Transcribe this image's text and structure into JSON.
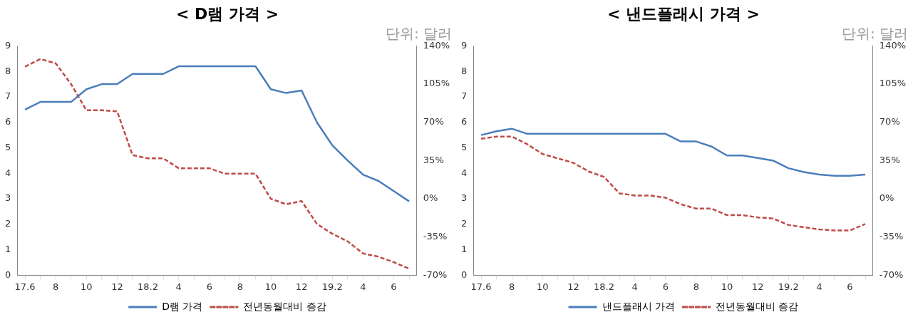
{
  "chart_data": [
    {
      "type": "line",
      "title": "< D램 가격 >",
      "annotations": [
        "단위: 달러"
      ],
      "categories": [
        "17.6",
        null,
        "8",
        null,
        "10",
        null,
        "12",
        null,
        "18.2",
        null,
        "4",
        null,
        "6",
        null,
        "8",
        null,
        "10",
        null,
        "12",
        null,
        "19.2",
        null,
        "4",
        null,
        "6",
        null
      ],
      "series": [
        {
          "name": "D램 가격",
          "color": "#4a7ebb",
          "line_style": "solid",
          "values": [
            6.5,
            6.8,
            6.8,
            6.8,
            7.3,
            7.5,
            7.5,
            7.9,
            7.9,
            7.9,
            8.2,
            8.2,
            8.2,
            8.2,
            8.2,
            8.2,
            7.3,
            7.15,
            7.25,
            6.0,
            5.1,
            4.5,
            3.95,
            3.7,
            3.3,
            2.9
          ]
        },
        {
          "name": "전년동월대비 증감",
          "color": "#be4b48",
          "line_style": "dashed",
          "axis": "y2",
          "values": [
            121,
            128,
            124,
            105,
            81,
            81,
            80,
            40,
            37,
            37,
            28,
            28,
            28,
            23,
            23,
            23,
            0,
            -5,
            -2,
            -23,
            -32,
            -39,
            -50,
            -53,
            -58,
            -64
          ]
        }
      ],
      "ylim": [
        0,
        9
      ],
      "yticks": [
        0,
        1,
        2,
        3,
        4,
        5,
        6,
        7,
        8,
        9
      ],
      "y2lim": [
        -70,
        140
      ],
      "y2ticks": [
        {
          "value": -70,
          "label": "-70%"
        },
        {
          "value": -35,
          "label": "-35%"
        },
        {
          "value": 0,
          "label": "0%"
        },
        {
          "value": 35,
          "label": "35%"
        },
        {
          "value": 70,
          "label": "70%"
        },
        {
          "value": 105,
          "label": "105%"
        },
        {
          "value": 140,
          "label": "140%"
        }
      ],
      "grid": false,
      "legend": "bottom",
      "marker": "none"
    },
    {
      "type": "line",
      "title": "< 낸드플래시 가격 >",
      "annotations": [
        "단위: 달러"
      ],
      "categories": [
        "17.6",
        null,
        "8",
        null,
        "10",
        null,
        "12",
        null,
        "18.2",
        null,
        "4",
        null,
        "6",
        null,
        "8",
        null,
        "10",
        null,
        "12",
        null,
        "19.2",
        null,
        "4",
        null,
        "6",
        null
      ],
      "series": [
        {
          "name": "낸드플래시 가격",
          "color": "#4a7ebb",
          "line_style": "solid",
          "values": [
            5.5,
            5.65,
            5.75,
            5.55,
            5.55,
            5.55,
            5.55,
            5.55,
            5.55,
            5.55,
            5.55,
            5.55,
            5.55,
            5.25,
            5.25,
            5.05,
            4.7,
            4.7,
            4.6,
            4.5,
            4.2,
            4.05,
            3.95,
            3.9,
            3.9,
            3.95
          ]
        },
        {
          "name": "전년동월대비 증감",
          "color": "#be4b48",
          "line_style": "dashed",
          "axis": "y2",
          "values": [
            55,
            57,
            57,
            50,
            41,
            37,
            33,
            25,
            20,
            5,
            3,
            3,
            1,
            -5,
            -9,
            -9,
            -15,
            -15,
            -17,
            -18,
            -24,
            -26,
            -28,
            -29,
            -29,
            -23
          ]
        }
      ],
      "ylim": [
        0,
        9
      ],
      "yticks": [
        0,
        1,
        2,
        3,
        4,
        5,
        6,
        7,
        8,
        9
      ],
      "y2lim": [
        -70,
        140
      ],
      "y2ticks": [
        {
          "value": -70,
          "label": "-70%"
        },
        {
          "value": -35,
          "label": "-35%"
        },
        {
          "value": 0,
          "label": "0%"
        },
        {
          "value": 35,
          "label": "35%"
        },
        {
          "value": 70,
          "label": "70%"
        },
        {
          "value": 105,
          "label": "105%"
        },
        {
          "value": 140,
          "label": "140%"
        }
      ],
      "grid": false,
      "legend": "bottom",
      "marker": "none"
    }
  ]
}
